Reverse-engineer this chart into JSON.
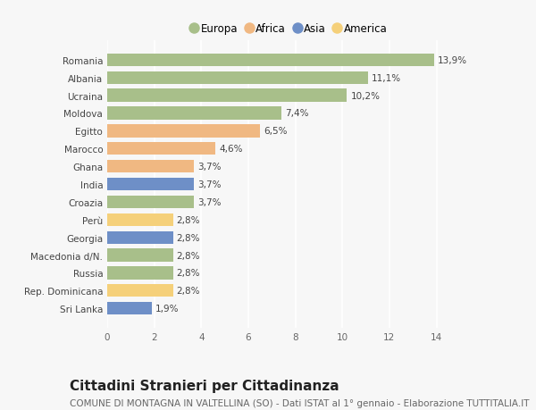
{
  "countries": [
    "Romania",
    "Albania",
    "Ucraina",
    "Moldova",
    "Egitto",
    "Marocco",
    "Ghana",
    "India",
    "Croazia",
    "Perù",
    "Georgia",
    "Macedonia d/N.",
    "Russia",
    "Rep. Dominicana",
    "Sri Lanka"
  ],
  "values": [
    13.9,
    11.1,
    10.2,
    7.4,
    6.5,
    4.6,
    3.7,
    3.7,
    3.7,
    2.8,
    2.8,
    2.8,
    2.8,
    2.8,
    1.9
  ],
  "labels": [
    "13,9%",
    "11,1%",
    "10,2%",
    "7,4%",
    "6,5%",
    "4,6%",
    "3,7%",
    "3,7%",
    "3,7%",
    "2,8%",
    "2,8%",
    "2,8%",
    "2,8%",
    "2,8%",
    "1,9%"
  ],
  "continents": [
    "Europa",
    "Europa",
    "Europa",
    "Europa",
    "Africa",
    "Africa",
    "Africa",
    "Asia",
    "Europa",
    "America",
    "Asia",
    "Europa",
    "Europa",
    "America",
    "Asia"
  ],
  "colors": {
    "Europa": "#a8bf8a",
    "Africa": "#f0b882",
    "Asia": "#6e8fc7",
    "America": "#f5d07a"
  },
  "xlim": [
    0,
    15.5
  ],
  "xticks": [
    0,
    2,
    4,
    6,
    8,
    10,
    12,
    14
  ],
  "background_color": "#f7f7f7",
  "grid_color": "#ffffff",
  "bar_height": 0.72,
  "title": "Cittadini Stranieri per Cittadinanza",
  "subtitle": "COMUNE DI MONTAGNA IN VALTELLINA (SO) - Dati ISTAT al 1° gennaio - Elaborazione TUTTITALIA.IT",
  "title_fontsize": 11,
  "subtitle_fontsize": 7.5,
  "label_fontsize": 7.5,
  "tick_fontsize": 7.5,
  "legend_fontsize": 8.5,
  "legend_entries": [
    "Europa",
    "Africa",
    "Asia",
    "America"
  ]
}
